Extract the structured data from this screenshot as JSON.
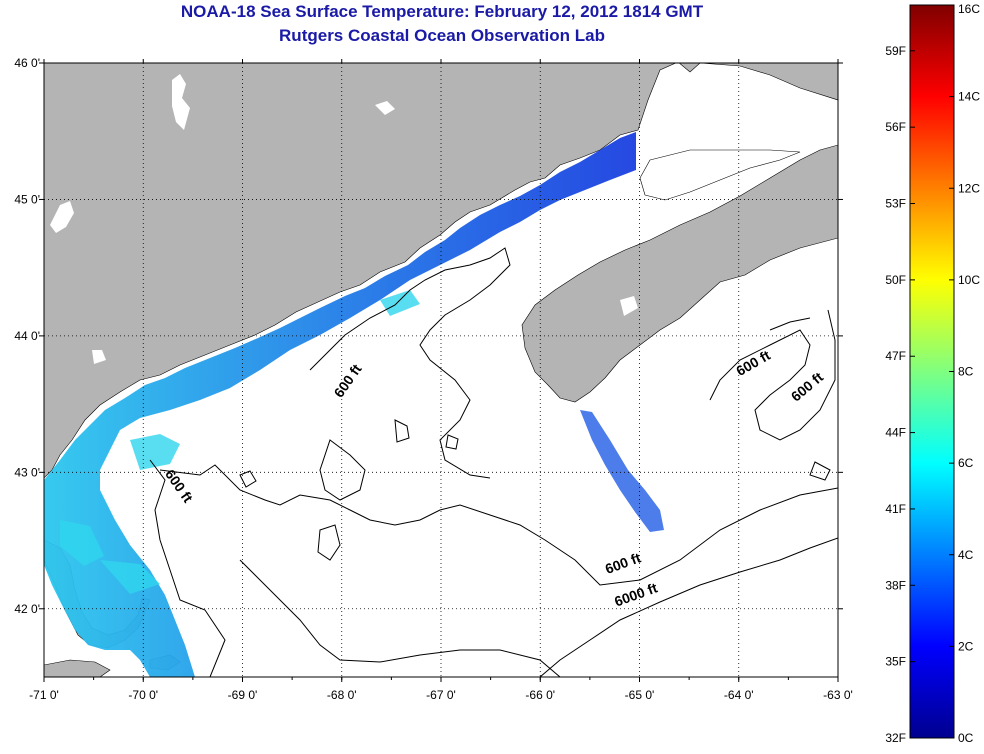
{
  "title": {
    "line1": "NOAA-18 Sea Surface Temperature:  February 12, 2012 1814 GMT",
    "line2": "Rutgers Coastal Ocean Observation Lab"
  },
  "map": {
    "lon_range": [
      -71,
      -63
    ],
    "lat_range": [
      41.5,
      46
    ],
    "lon_ticks": [
      {
        "value": -71,
        "label": "-71 0'"
      },
      {
        "value": -70,
        "label": "-70 0'"
      },
      {
        "value": -69,
        "label": "-69 0'"
      },
      {
        "value": -68,
        "label": "-68 0'"
      },
      {
        "value": -67,
        "label": "-67 0'"
      },
      {
        "value": -66,
        "label": "-66 0'"
      },
      {
        "value": -65,
        "label": "-65 0'"
      },
      {
        "value": -64,
        "label": "-64 0'"
      },
      {
        "value": -63,
        "label": "-63 0'"
      }
    ],
    "lat_ticks": [
      {
        "value": 46,
        "label": "46 0'"
      },
      {
        "value": 45,
        "label": "45 0'"
      },
      {
        "value": 44,
        "label": "44 0'"
      },
      {
        "value": 43,
        "label": "43 0'"
      },
      {
        "value": 42,
        "label": "42 0'"
      }
    ],
    "grid": "dotted",
    "land_color": "#b4b4b4",
    "ocean_color": "#ffffff",
    "isobath_labels": [
      {
        "text": "600 ft",
        "lon": -67.9,
        "lat": 43.65,
        "rotation": -55
      },
      {
        "text": "600 ft",
        "lon": -69.68,
        "lat": 42.88,
        "rotation": 55
      },
      {
        "text": "600 ft",
        "lon": -63.83,
        "lat": 43.77,
        "rotation": -30
      },
      {
        "text": "600 ft",
        "lon": -63.28,
        "lat": 43.6,
        "rotation": -40
      },
      {
        "text": "600 ft",
        "lon": -65.15,
        "lat": 42.3,
        "rotation": -20
      },
      {
        "text": "6000 ft",
        "lon": -65.02,
        "lat": 42.07,
        "rotation": -20
      }
    ]
  },
  "colorbar": {
    "colormap": "jet",
    "celsius_ticks": [
      {
        "value": 16,
        "label": "16C"
      },
      {
        "value": 14,
        "label": "14C"
      },
      {
        "value": 12,
        "label": "12C"
      },
      {
        "value": 10,
        "label": "10C"
      },
      {
        "value": 8,
        "label": "8C"
      },
      {
        "value": 6,
        "label": "6C"
      },
      {
        "value": 4,
        "label": "4C"
      },
      {
        "value": 2,
        "label": "2C"
      },
      {
        "value": 0,
        "label": "0C"
      }
    ],
    "fahrenheit_ticks": [
      {
        "value": 59,
        "label": "59F"
      },
      {
        "value": 56,
        "label": "56F"
      },
      {
        "value": 53,
        "label": "53F"
      },
      {
        "value": 50,
        "label": "50F"
      },
      {
        "value": 47,
        "label": "47F"
      },
      {
        "value": 44,
        "label": "44F"
      },
      {
        "value": 41,
        "label": "41F"
      },
      {
        "value": 38,
        "label": "38F"
      },
      {
        "value": 35,
        "label": "35F"
      },
      {
        "value": 32,
        "label": "32F"
      }
    ],
    "range_c": [
      0,
      16
    ]
  }
}
